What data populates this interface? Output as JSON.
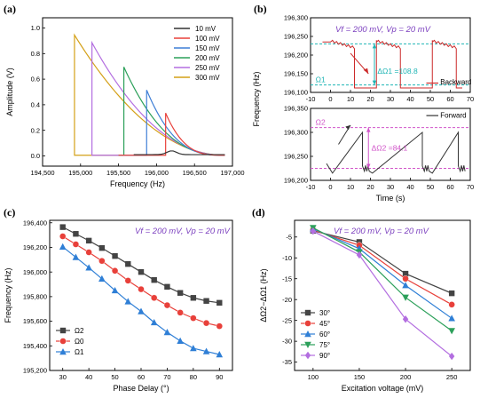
{
  "chart_data": [
    {
      "panel": "(a)",
      "type": "line",
      "xlabel": "Frequency (Hz)",
      "ylabel": "Amplitude (V)",
      "xlim": [
        194500,
        197000
      ],
      "ylim": [
        -0.08,
        1.08
      ],
      "xticks": [
        "194,500",
        "195,000",
        "195,500",
        "196,000",
        "196,500",
        "197,000"
      ],
      "yticks": [
        "0.0",
        "0.2",
        "0.4",
        "0.6",
        "0.8",
        "1.0"
      ],
      "legend_position": "top-right",
      "series": [
        {
          "name": "10 mV",
          "color": "#333333",
          "jump_x": 196200,
          "jump_y": 0.02
        },
        {
          "name": "100 mV",
          "color": "#e8403a",
          "jump_x": 196120,
          "jump_y": 0.33
        },
        {
          "name": "150 mV",
          "color": "#3f7fd6",
          "jump_x": 195870,
          "jump_y": 0.51
        },
        {
          "name": "200 mV",
          "color": "#2ca05a",
          "jump_x": 195570,
          "jump_y": 0.69
        },
        {
          "name": "250 mV",
          "color": "#b36ee0",
          "jump_x": 195150,
          "jump_y": 0.88
        },
        {
          "name": "300 mV",
          "color": "#d4a017",
          "jump_x": 194920,
          "jump_y": 0.94
        }
      ],
      "curve_end_x": 196900
    },
    {
      "panel": "(b)",
      "type": "line",
      "xlabel": "Time (s)",
      "ylabel": "Frequency (Hz)",
      "condition_text": "Vf = 200 mV, Vp = 20 mV",
      "xlim": [
        -10,
        70
      ],
      "xticks": [
        "-10",
        "0",
        "10",
        "20",
        "30",
        "40",
        "50",
        "60",
        "70"
      ],
      "top": {
        "ylim": [
          196100,
          196300
        ],
        "yticks": [
          "196,100",
          "196,150",
          "196,200",
          "196,250",
          "196,300"
        ],
        "legend": "Backward",
        "level_upper": 196230,
        "level_lower": 196120,
        "omega_label": "Ω1",
        "delta_label": "ΔΩ1 =108.8",
        "jumps_t": [
          23,
          51
        ]
      },
      "bottom": {
        "ylim": [
          196200,
          196350
        ],
        "yticks": [
          "196,200",
          "196,250",
          "196,300",
          "196,350"
        ],
        "legend": "Forward",
        "level_upper": 196310,
        "level_lower": 196225,
        "omega_label": "Ω2",
        "delta_label": "ΔΩ2 =84.1",
        "jumps_t": [
          17,
          47
        ]
      }
    },
    {
      "panel": "(c)",
      "type": "line",
      "xlabel": "Phase Delay (°)",
      "ylabel": "Frequency (Hz)",
      "condition_text": "Vf = 200 mV, Vp = 20 mV",
      "xlim": [
        25,
        95
      ],
      "ylim": [
        195200,
        196420
      ],
      "xticks": [
        "30",
        "40",
        "50",
        "60",
        "70",
        "80",
        "90"
      ],
      "yticks": [
        "195,200",
        "195,400",
        "195,600",
        "195,800",
        "196,000",
        "196,200",
        "196,400"
      ],
      "legend_position": "bottom-left",
      "x": [
        30,
        35,
        40,
        45,
        50,
        55,
        60,
        65,
        70,
        75,
        80,
        85,
        90
      ],
      "series": [
        {
          "name": "Ω2",
          "marker": "square",
          "color": "#444444",
          "values": [
            196365,
            196310,
            196255,
            196195,
            196130,
            196065,
            196000,
            195935,
            195880,
            195830,
            195790,
            195765,
            195750
          ]
        },
        {
          "name": "Ω0",
          "marker": "circle",
          "color": "#e8403a",
          "values": [
            196290,
            196225,
            196160,
            196090,
            196010,
            195930,
            195860,
            195790,
            195730,
            195670,
            195625,
            195585,
            195560
          ]
        },
        {
          "name": "Ω1",
          "marker": "triangle",
          "color": "#2f7fd6",
          "values": [
            196205,
            196120,
            196035,
            195945,
            195850,
            195760,
            195680,
            195590,
            195510,
            195440,
            195380,
            195355,
            195330
          ]
        }
      ]
    },
    {
      "panel": "(d)",
      "type": "line",
      "xlabel": "Excitation voltage (mV)",
      "ylabel": "ΔΩ2−ΔΩ1 (Hz)",
      "condition_text": "Vf = 200 mV, Vp = 20 mV",
      "xlim": [
        80,
        270
      ],
      "ylim": [
        -37,
        -1
      ],
      "xticks": [
        "100",
        "150",
        "200",
        "250"
      ],
      "yticks": [
        "-35",
        "-30",
        "-25",
        "-20",
        "-15",
        "-10",
        "-5"
      ],
      "legend_position": "bottom-left",
      "x": [
        100,
        150,
        200,
        250
      ],
      "series": [
        {
          "name": "30°",
          "marker": "square",
          "color": "#444444",
          "values": [
            -3.5,
            -6.2,
            -13.8,
            -18.5
          ]
        },
        {
          "name": "45°",
          "marker": "circle",
          "color": "#e8403a",
          "values": [
            -3.3,
            -7.0,
            -15.0,
            -21.2
          ]
        },
        {
          "name": "60°",
          "marker": "triangle",
          "color": "#2f7fd6",
          "values": [
            -3.0,
            -7.8,
            -16.6,
            -24.5
          ]
        },
        {
          "name": "75°",
          "marker": "tri-down",
          "color": "#2ca05a",
          "values": [
            -2.8,
            -8.6,
            -19.5,
            -27.5
          ]
        },
        {
          "name": "90°",
          "marker": "diamond",
          "color": "#b36ee0",
          "values": [
            -3.6,
            -9.3,
            -24.7,
            -33.6
          ]
        }
      ]
    }
  ]
}
